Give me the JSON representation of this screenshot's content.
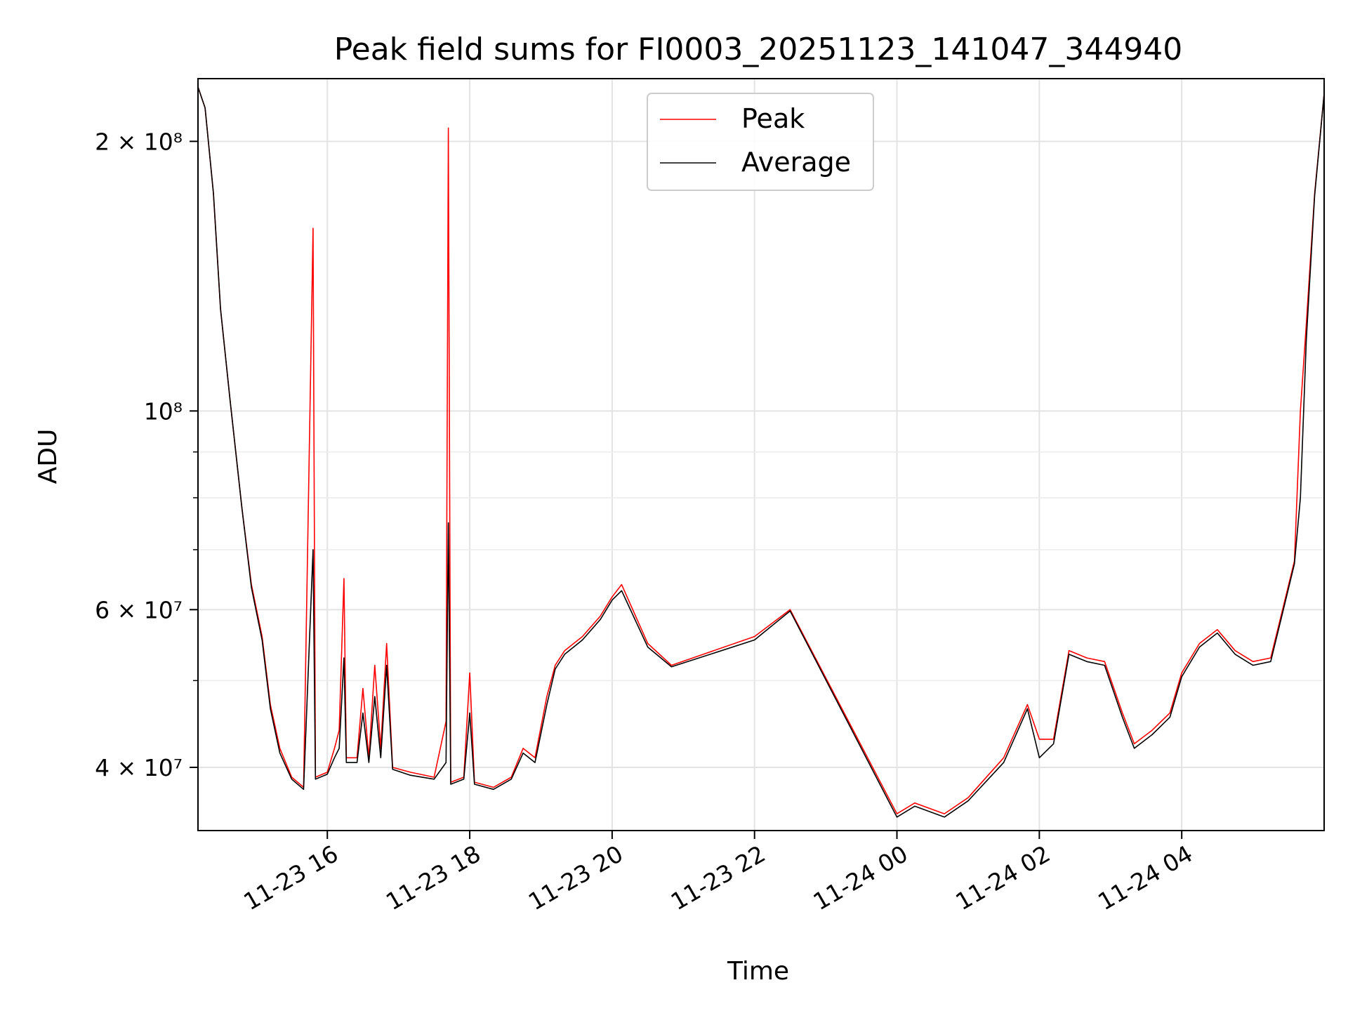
{
  "chart_data": {
    "type": "line",
    "title": "Peak field sums for FI0003_20251123_141047_344940",
    "xlabel": "Time",
    "ylabel": "ADU",
    "x_range_hours": [
      14.18,
      6.0
    ],
    "xlim": [
      "2025-11-23 14:11",
      "2025-11-24 06:00"
    ],
    "ylim": [
      34000000,
      235000000
    ],
    "yscale": "log",
    "grid": true,
    "legend_position": "top-center",
    "x_ticks": [
      {
        "t": "2025-11-23 16:00",
        "label": "11-23 16"
      },
      {
        "t": "2025-11-23 18:00",
        "label": "11-23 18"
      },
      {
        "t": "2025-11-23 20:00",
        "label": "11-23 20"
      },
      {
        "t": "2025-11-23 22:00",
        "label": "11-23 22"
      },
      {
        "t": "2025-11-24 00:00",
        "label": "11-24 00"
      },
      {
        "t": "2025-11-24 02:00",
        "label": "11-24 02"
      },
      {
        "t": "2025-11-24 04:00",
        "label": "11-24 04"
      }
    ],
    "y_ticks": [
      {
        "value": 40000000,
        "label": "4 × 10⁷"
      },
      {
        "value": 60000000,
        "label": "6 × 10⁷"
      },
      {
        "value": 100000000,
        "label": "10⁸"
      },
      {
        "value": 200000000,
        "label": "2 × 10⁸"
      }
    ],
    "y_minor_ticks": [
      50000000,
      70000000,
      80000000,
      90000000
    ],
    "series": [
      {
        "name": "Peak",
        "color": "#ff0000",
        "points": [
          [
            "2025-11-23 14:11",
            230000000
          ],
          [
            "2025-11-23 14:17",
            218000000
          ],
          [
            "2025-11-23 14:24",
            175000000
          ],
          [
            "2025-11-23 14:30",
            130000000
          ],
          [
            "2025-11-23 14:38",
            103000000
          ],
          [
            "2025-11-23 14:48",
            78000000
          ],
          [
            "2025-11-23 14:56",
            64000000
          ],
          [
            "2025-11-23 15:05",
            56000000
          ],
          [
            "2025-11-23 15:12",
            47000000
          ],
          [
            "2025-11-23 15:20",
            42000000
          ],
          [
            "2025-11-23 15:30",
            39000000
          ],
          [
            "2025-11-23 15:40",
            38000000
          ],
          [
            "2025-11-23 15:48",
            160000000
          ],
          [
            "2025-11-23 15:50",
            39000000
          ],
          [
            "2025-11-23 16:00",
            39500000
          ],
          [
            "2025-11-23 16:06",
            42000000
          ],
          [
            "2025-11-23 16:10",
            44000000
          ],
          [
            "2025-11-23 16:14",
            65000000
          ],
          [
            "2025-11-23 16:16",
            41000000
          ],
          [
            "2025-11-23 16:25",
            41000000
          ],
          [
            "2025-11-23 16:30",
            49000000
          ],
          [
            "2025-11-23 16:35",
            41000000
          ],
          [
            "2025-11-23 16:40",
            52000000
          ],
          [
            "2025-11-23 16:45",
            42000000
          ],
          [
            "2025-11-23 16:50",
            55000000
          ],
          [
            "2025-11-23 16:55",
            40000000
          ],
          [
            "2025-11-23 17:10",
            39500000
          ],
          [
            "2025-11-23 17:30",
            39000000
          ],
          [
            "2025-11-23 17:40",
            45000000
          ],
          [
            "2025-11-23 17:42",
            207000000
          ],
          [
            "2025-11-23 17:44",
            38500000
          ],
          [
            "2025-11-23 17:55",
            39000000
          ],
          [
            "2025-11-23 18:00",
            51000000
          ],
          [
            "2025-11-23 18:04",
            38500000
          ],
          [
            "2025-11-23 18:20",
            38000000
          ],
          [
            "2025-11-23 18:35",
            39000000
          ],
          [
            "2025-11-23 18:45",
            42000000
          ],
          [
            "2025-11-23 18:55",
            41000000
          ],
          [
            "2025-11-23 19:05",
            48000000
          ],
          [
            "2025-11-23 19:12",
            52000000
          ],
          [
            "2025-11-23 19:20",
            54000000
          ],
          [
            "2025-11-23 19:35",
            56000000
          ],
          [
            "2025-11-23 19:50",
            59000000
          ],
          [
            "2025-11-23 20:00",
            62000000
          ],
          [
            "2025-11-23 20:08",
            64000000
          ],
          [
            "2025-11-23 20:30",
            55000000
          ],
          [
            "2025-11-23 20:50",
            52000000
          ],
          [
            "2025-11-23 22:00",
            56000000
          ],
          [
            "2025-11-23 22:30",
            60000000
          ],
          [
            "2025-11-24 00:00",
            35500000
          ],
          [
            "2025-11-24 00:15",
            36500000
          ],
          [
            "2025-11-24 00:40",
            35500000
          ],
          [
            "2025-11-24 01:00",
            37000000
          ],
          [
            "2025-11-24 01:30",
            41000000
          ],
          [
            "2025-11-24 01:50",
            47000000
          ],
          [
            "2025-11-24 02:00",
            43000000
          ],
          [
            "2025-11-24 02:12",
            43000000
          ],
          [
            "2025-11-24 02:25",
            54000000
          ],
          [
            "2025-11-24 02:40",
            53000000
          ],
          [
            "2025-11-24 02:55",
            52500000
          ],
          [
            "2025-11-24 03:10",
            46000000
          ],
          [
            "2025-11-24 03:20",
            42500000
          ],
          [
            "2025-11-24 03:35",
            44000000
          ],
          [
            "2025-11-24 03:50",
            46000000
          ],
          [
            "2025-11-24 04:00",
            51000000
          ],
          [
            "2025-11-24 04:15",
            55000000
          ],
          [
            "2025-11-24 04:30",
            57000000
          ],
          [
            "2025-11-24 04:45",
            54000000
          ],
          [
            "2025-11-24 05:00",
            52500000
          ],
          [
            "2025-11-24 05:15",
            53000000
          ],
          [
            "2025-11-24 05:25",
            60000000
          ],
          [
            "2025-11-24 05:35",
            68000000
          ],
          [
            "2025-11-24 05:40",
            100000000
          ],
          [
            "2025-11-24 05:45",
            125000000
          ],
          [
            "2025-11-24 05:52",
            175000000
          ],
          [
            "2025-11-24 06:00",
            226000000
          ]
        ]
      },
      {
        "name": "Average",
        "color": "#000000",
        "points": [
          [
            "2025-11-23 14:11",
            230000000
          ],
          [
            "2025-11-23 14:17",
            218000000
          ],
          [
            "2025-11-23 14:24",
            175000000
          ],
          [
            "2025-11-23 14:30",
            130000000
          ],
          [
            "2025-11-23 14:38",
            103000000
          ],
          [
            "2025-11-23 14:48",
            78000000
          ],
          [
            "2025-11-23 14:56",
            63500000
          ],
          [
            "2025-11-23 15:05",
            55500000
          ],
          [
            "2025-11-23 15:12",
            46500000
          ],
          [
            "2025-11-23 15:20",
            41500000
          ],
          [
            "2025-11-23 15:30",
            38800000
          ],
          [
            "2025-11-23 15:40",
            37800000
          ],
          [
            "2025-11-23 15:48",
            70000000
          ],
          [
            "2025-11-23 15:50",
            38800000
          ],
          [
            "2025-11-23 16:00",
            39300000
          ],
          [
            "2025-11-23 16:06",
            41000000
          ],
          [
            "2025-11-23 16:10",
            42000000
          ],
          [
            "2025-11-23 16:14",
            53000000
          ],
          [
            "2025-11-23 16:16",
            40500000
          ],
          [
            "2025-11-23 16:25",
            40500000
          ],
          [
            "2025-11-23 16:30",
            46000000
          ],
          [
            "2025-11-23 16:35",
            40500000
          ],
          [
            "2025-11-23 16:40",
            48000000
          ],
          [
            "2025-11-23 16:45",
            41000000
          ],
          [
            "2025-11-23 16:50",
            52000000
          ],
          [
            "2025-11-23 16:55",
            39800000
          ],
          [
            "2025-11-23 17:10",
            39200000
          ],
          [
            "2025-11-23 17:30",
            38800000
          ],
          [
            "2025-11-23 17:40",
            40500000
          ],
          [
            "2025-11-23 17:42",
            75000000
          ],
          [
            "2025-11-23 17:44",
            38300000
          ],
          [
            "2025-11-23 17:55",
            38800000
          ],
          [
            "2025-11-23 18:00",
            46000000
          ],
          [
            "2025-11-23 18:04",
            38300000
          ],
          [
            "2025-11-23 18:20",
            37800000
          ],
          [
            "2025-11-23 18:35",
            38800000
          ],
          [
            "2025-11-23 18:45",
            41500000
          ],
          [
            "2025-11-23 18:55",
            40500000
          ],
          [
            "2025-11-23 19:05",
            47000000
          ],
          [
            "2025-11-23 19:12",
            51500000
          ],
          [
            "2025-11-23 19:20",
            53500000
          ],
          [
            "2025-11-23 19:35",
            55500000
          ],
          [
            "2025-11-23 19:50",
            58500000
          ],
          [
            "2025-11-23 20:00",
            61500000
          ],
          [
            "2025-11-23 20:08",
            63000000
          ],
          [
            "2025-11-23 20:30",
            54500000
          ],
          [
            "2025-11-23 20:50",
            51800000
          ],
          [
            "2025-11-23 22:00",
            55500000
          ],
          [
            "2025-11-23 22:30",
            59800000
          ],
          [
            "2025-11-24 00:00",
            35200000
          ],
          [
            "2025-11-24 00:15",
            36200000
          ],
          [
            "2025-11-24 00:40",
            35200000
          ],
          [
            "2025-11-24 01:00",
            36700000
          ],
          [
            "2025-11-24 01:30",
            40500000
          ],
          [
            "2025-11-24 01:50",
            46500000
          ],
          [
            "2025-11-24 02:00",
            41000000
          ],
          [
            "2025-11-24 02:12",
            42500000
          ],
          [
            "2025-11-24 02:25",
            53500000
          ],
          [
            "2025-11-24 02:40",
            52500000
          ],
          [
            "2025-11-24 02:55",
            52000000
          ],
          [
            "2025-11-24 03:10",
            45500000
          ],
          [
            "2025-11-24 03:20",
            42000000
          ],
          [
            "2025-11-24 03:35",
            43500000
          ],
          [
            "2025-11-24 03:50",
            45500000
          ],
          [
            "2025-11-24 04:00",
            50500000
          ],
          [
            "2025-11-24 04:15",
            54500000
          ],
          [
            "2025-11-24 04:30",
            56500000
          ],
          [
            "2025-11-24 04:45",
            53500000
          ],
          [
            "2025-11-24 05:00",
            52000000
          ],
          [
            "2025-11-24 05:15",
            52500000
          ],
          [
            "2025-11-24 05:25",
            59500000
          ],
          [
            "2025-11-24 05:35",
            67500000
          ],
          [
            "2025-11-24 05:40",
            80000000
          ],
          [
            "2025-11-24 05:45",
            120000000
          ],
          [
            "2025-11-24 05:52",
            174000000
          ],
          [
            "2025-11-24 06:00",
            226000000
          ]
        ]
      }
    ]
  }
}
